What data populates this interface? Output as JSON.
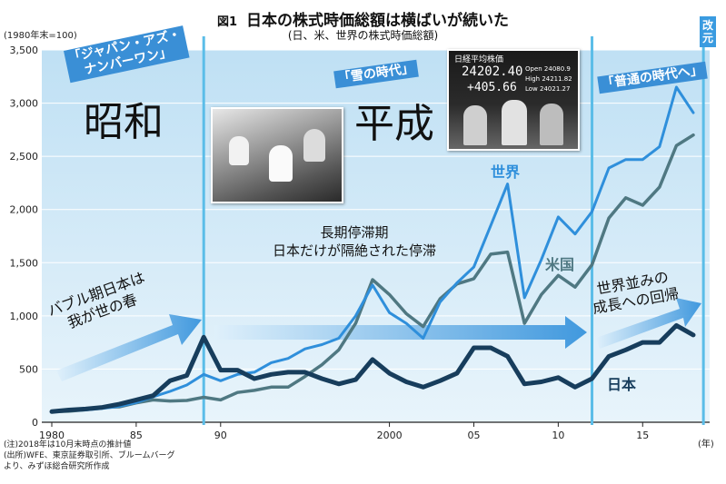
{
  "figure_label": "図1",
  "unit_label": "(1980年末=100)",
  "x_suffix_label": "(年)",
  "notes": [
    "(注)2018年は10月末時点の推計値",
    "(出所)WFE、東京証券取引所、ブルームバーグより、みずほ総合研究所作成"
  ],
  "eras": {
    "showa_tag": [
      "「ジャパン・アズ・",
      "ナンバーワン」"
    ],
    "showa_name": "昭和",
    "heisei_tag": "「雪の時代」",
    "heisei_name": "平成",
    "modern_tag": "「普通の時代へ」",
    "reiwa": "改元"
  },
  "annotations": {
    "bubble": [
      "バブル期日本は",
      "我が世の春"
    ],
    "stagnation": [
      "長期停滞期",
      "日本だけが隔絶された停滞"
    ],
    "recovery": [
      "世界並みの",
      "成長への回帰"
    ]
  },
  "photo_ticker": {
    "title": "日経平均株価",
    "value": "24202.40",
    "change": "+405.66",
    "rows": [
      "Open 24080.9",
      "High 24211.82",
      "Low 24021.27"
    ]
  },
  "colors": {
    "world": "#2f8fdb",
    "us": "#4f7882",
    "japan": "#173d5c",
    "band": "#c9e3f4",
    "divider": "#5bbde8"
  },
  "chart_data": {
    "type": "line",
    "title": "日本の株式時価総額は横ばいが続いた",
    "subtitle": "(日、米、世界の株式時価総額)",
    "xlabel": "",
    "ylabel": "",
    "xlim": [
      1980,
      2018
    ],
    "ylim": [
      0,
      3500
    ],
    "x_ticks": [
      1980,
      1985,
      1990,
      2000,
      2005,
      2010,
      2015
    ],
    "x_tick_labels": [
      "1980",
      "85",
      "90",
      "2000",
      "05",
      "10",
      "15"
    ],
    "y_ticks": [
      0,
      500,
      1000,
      1500,
      2000,
      2500,
      3000,
      3500
    ],
    "y_tick_labels": [
      "0",
      "500",
      "1,000",
      "1,500",
      "2,000",
      "2,500",
      "3,000",
      "3,500"
    ],
    "x": [
      1980,
      1981,
      1982,
      1983,
      1984,
      1985,
      1986,
      1987,
      1988,
      1989,
      1990,
      1991,
      1992,
      1993,
      1994,
      1995,
      1996,
      1997,
      1998,
      1999,
      2000,
      2001,
      2002,
      2003,
      2004,
      2005,
      2006,
      2007,
      2008,
      2009,
      2010,
      2011,
      2012,
      2013,
      2014,
      2015,
      2016,
      2017,
      2018
    ],
    "series": [
      {
        "name": "世界",
        "values": [
          100,
          110,
          115,
          130,
          150,
          185,
          240,
          290,
          350,
          450,
          390,
          450,
          470,
          560,
          600,
          690,
          730,
          790,
          1000,
          1290,
          1030,
          930,
          790,
          1130,
          1310,
          1460,
          1850,
          2240,
          1170,
          1530,
          1930,
          1770,
          1980,
          2390,
          2470,
          2470,
          2590,
          3150,
          2910
        ]
      },
      {
        "name": "米国",
        "values": [
          100,
          103,
          118,
          140,
          145,
          182,
          210,
          200,
          205,
          235,
          210,
          280,
          300,
          330,
          330,
          430,
          540,
          680,
          930,
          1340,
          1200,
          1020,
          900,
          1160,
          1300,
          1350,
          1580,
          1600,
          930,
          1200,
          1380,
          1270,
          1480,
          1920,
          2110,
          2040,
          2210,
          2600,
          2700
        ]
      },
      {
        "name": "日本",
        "values": [
          100,
          115,
          125,
          140,
          170,
          210,
          250,
          390,
          440,
          800,
          490,
          490,
          410,
          450,
          470,
          470,
          410,
          360,
          400,
          590,
          460,
          380,
          330,
          390,
          460,
          700,
          700,
          620,
          360,
          380,
          420,
          330,
          410,
          620,
          680,
          750,
          750,
          910,
          820
        ]
      }
    ]
  }
}
